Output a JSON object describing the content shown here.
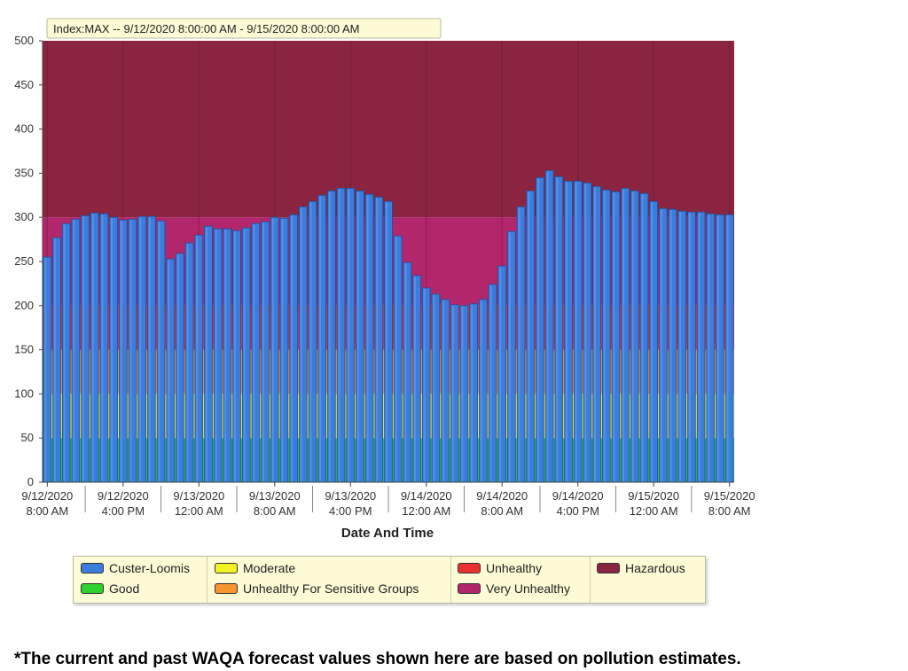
{
  "chart_data": {
    "type": "bar",
    "index_label": "Index:MAX -- 9/12/2020 8:00:00 AM  -  9/15/2020 8:00:00 AM",
    "xlabel": "Date And Time",
    "ylabel": "",
    "ylim": [
      0,
      500
    ],
    "yticks": [
      0,
      50,
      100,
      150,
      200,
      250,
      300,
      350,
      400,
      450,
      500
    ],
    "xtick_labels": [
      [
        "9/12/2020",
        "8:00 AM"
      ],
      [
        "9/12/2020",
        "4:00 PM"
      ],
      [
        "9/13/2020",
        "12:00 AM"
      ],
      [
        "9/13/2020",
        "8:00 AM"
      ],
      [
        "9/13/2020",
        "4:00 PM"
      ],
      [
        "9/14/2020",
        "12:00 AM"
      ],
      [
        "9/14/2020",
        "8:00 AM"
      ],
      [
        "9/14/2020",
        "4:00 PM"
      ],
      [
        "9/15/2020",
        "12:00 AM"
      ],
      [
        "9/15/2020",
        "8:00 AM"
      ]
    ],
    "bands": [
      {
        "name": "Good",
        "from": 0,
        "to": 50,
        "color": "#2ed12e"
      },
      {
        "name": "Moderate",
        "from": 50,
        "to": 100,
        "color": "#f2f224"
      },
      {
        "name": "Unhealthy For Sensitive Groups",
        "from": 100,
        "to": 150,
        "color": "#f7952f"
      },
      {
        "name": "Unhealthy",
        "from": 150,
        "to": 200,
        "color": "#ea3030"
      },
      {
        "name": "Very Unhealthy",
        "from": 200,
        "to": 300,
        "color": "#b2266b"
      },
      {
        "name": "Hazardous",
        "from": 300,
        "to": 500,
        "color": "#8a2440"
      }
    ],
    "series": [
      {
        "name": "Custer-Loomis",
        "color": "#3b7ddd",
        "values": [
          255,
          277,
          293,
          298,
          302,
          305,
          304,
          300,
          297,
          298,
          301,
          301,
          296,
          253,
          259,
          271,
          280,
          290,
          287,
          287,
          285,
          288,
          293,
          295,
          300,
          299,
          303,
          312,
          318,
          325,
          330,
          333,
          333,
          330,
          326,
          323,
          318,
          279,
          249,
          234,
          220,
          213,
          207,
          201,
          200,
          202,
          207,
          224,
          245,
          284,
          312,
          330,
          345,
          353,
          346,
          341,
          341,
          339,
          335,
          331,
          329,
          333,
          330,
          327,
          318,
          310,
          309,
          307,
          306,
          306,
          304,
          303,
          303
        ]
      }
    ]
  },
  "legend": {
    "items": [
      {
        "label": "Custer-Loomis",
        "color": "#3b7ddd"
      },
      {
        "label": "Good",
        "color": "#2ed12e"
      },
      {
        "label": "Moderate",
        "color": "#f2f224"
      },
      {
        "label": "Unhealthy For Sensitive Groups",
        "color": "#f7952f"
      },
      {
        "label": "Unhealthy",
        "color": "#ea3030"
      },
      {
        "label": "Very Unhealthy",
        "color": "#b2266b"
      },
      {
        "label": "Hazardous",
        "color": "#8a2440"
      }
    ]
  },
  "footnote": "*The current and past WAQA forecast values shown here are based on pollution estimates."
}
